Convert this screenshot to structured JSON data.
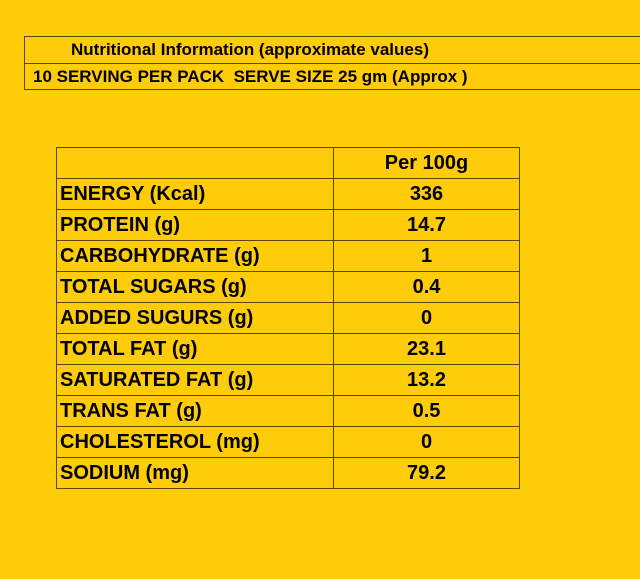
{
  "header": {
    "title": "Nutritional Information (approximate values)",
    "subtitle": "10 SERVING PER PACK  SERVE SIZE 25 gm (Approx )"
  },
  "table": {
    "column_header": "Per 100g",
    "rows": [
      {
        "label": "ENERGY (Kcal)",
        "value": "336"
      },
      {
        "label": "PROTEIN (g)",
        "value": "14.7"
      },
      {
        "label": "CARBOHYDRATE (g)",
        "value": "1"
      },
      {
        "label": "TOTAL SUGARS (g)",
        "value": "0.4"
      },
      {
        "label": "ADDED SUGURS (g)",
        "value": "0"
      },
      {
        "label": "TOTAL FAT (g)",
        "value": "23.1"
      },
      {
        "label": "SATURATED FAT (g)",
        "value": "13.2"
      },
      {
        "label": "TRANS FAT (g)",
        "value": "0.5"
      },
      {
        "label": "CHOLESTEROL (mg)",
        "value": "0"
      },
      {
        "label": "SODIUM (mg)",
        "value": "79.2"
      }
    ]
  },
  "colors": {
    "background": "#ffcc0a",
    "text": "#000000",
    "border": "#5a4a00"
  }
}
